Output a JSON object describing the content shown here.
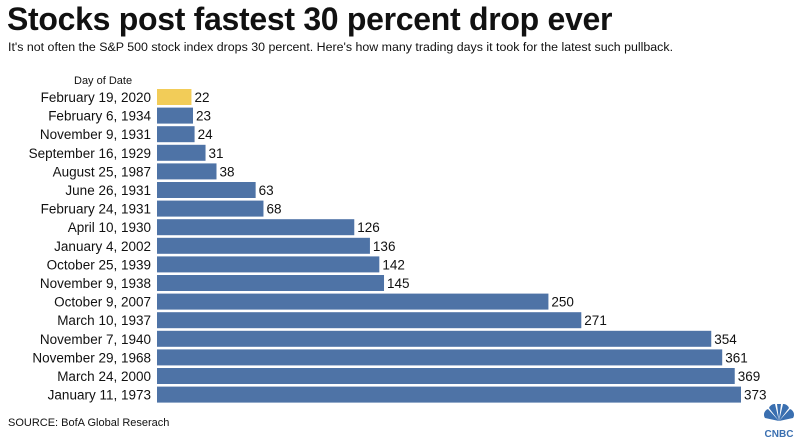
{
  "title": "Stocks post fastest 30 percent drop ever",
  "subtitle": "It's not often the S&P 500 stock index drops 30 percent. Here's how many trading days it took for the latest such pullback.",
  "source": "SOURCE: BofA Global Reserach",
  "logo_text": "CNBC",
  "colors": {
    "bar": "#4e73a6",
    "highlight": "#f2cc58",
    "text": "#111111"
  },
  "chart_data": {
    "type": "bar",
    "orientation": "horizontal",
    "category_header": "Day of Date",
    "categories": [
      "February 19, 2020",
      "February 6, 1934",
      "November 9, 1931",
      "September 16, 1929",
      "August 25, 1987",
      "June 26, 1931",
      "February 24, 1931",
      "April 10, 1930",
      "January 4, 2002",
      "October 25, 1939",
      "November 9, 1938",
      "October 9, 2007",
      "March 10, 1937",
      "November 7, 1940",
      "November 29, 1968",
      "March 24, 2000",
      "January 11, 1973"
    ],
    "values": [
      22,
      23,
      24,
      31,
      38,
      63,
      68,
      126,
      136,
      142,
      145,
      250,
      271,
      354,
      361,
      369,
      373
    ],
    "highlight_index": 0,
    "xlim": [
      0,
      373
    ],
    "grid": false,
    "data_labels": true
  }
}
